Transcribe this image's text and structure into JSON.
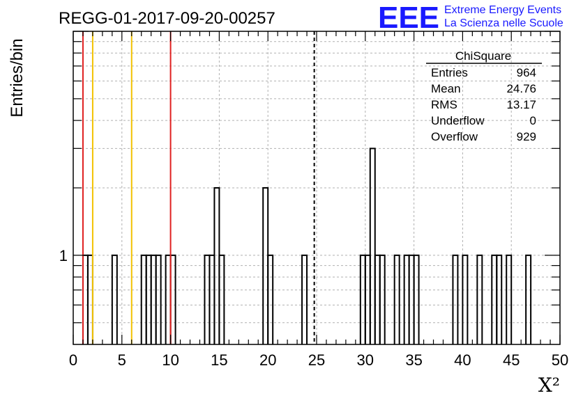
{
  "chart_data": {
    "type": "histogram",
    "title": "REGG-01-2017-09-20-00257",
    "xlabel": "X²",
    "ylabel": "Entries/bin",
    "xlim": [
      0,
      50
    ],
    "y_scale": "log",
    "ylim": [
      0.4,
      10
    ],
    "x_ticks": [
      "0",
      "5",
      "10",
      "15",
      "20",
      "25",
      "30",
      "35",
      "40",
      "45",
      "50"
    ],
    "y_ticks": [
      "1"
    ],
    "grid": true,
    "bin_width": 0.5,
    "bins": [
      {
        "x": 1.0,
        "count": 1
      },
      {
        "x": 1.5,
        "count": 1
      },
      {
        "x": 4.0,
        "count": 1
      },
      {
        "x": 7.0,
        "count": 1
      },
      {
        "x": 7.5,
        "count": 1
      },
      {
        "x": 8.0,
        "count": 1
      },
      {
        "x": 8.5,
        "count": 1
      },
      {
        "x": 9.5,
        "count": 1
      },
      {
        "x": 10.0,
        "count": 1
      },
      {
        "x": 13.5,
        "count": 1
      },
      {
        "x": 14.0,
        "count": 1
      },
      {
        "x": 14.5,
        "count": 2
      },
      {
        "x": 15.0,
        "count": 1
      },
      {
        "x": 19.5,
        "count": 2
      },
      {
        "x": 20.0,
        "count": 1
      },
      {
        "x": 23.5,
        "count": 1
      },
      {
        "x": 29.5,
        "count": 1
      },
      {
        "x": 30.0,
        "count": 1
      },
      {
        "x": 30.5,
        "count": 3
      },
      {
        "x": 31.0,
        "count": 1
      },
      {
        "x": 31.5,
        "count": 1
      },
      {
        "x": 33.0,
        "count": 1
      },
      {
        "x": 34.0,
        "count": 1
      },
      {
        "x": 34.5,
        "count": 1
      },
      {
        "x": 35.0,
        "count": 1
      },
      {
        "x": 39.0,
        "count": 1
      },
      {
        "x": 40.0,
        "count": 1
      },
      {
        "x": 41.5,
        "count": 1
      },
      {
        "x": 43.0,
        "count": 1
      },
      {
        "x": 43.5,
        "count": 1
      },
      {
        "x": 44.5,
        "count": 1
      },
      {
        "x": 46.5,
        "count": 1
      }
    ],
    "reference_lines": [
      {
        "x": 1.0,
        "color": "#e02020",
        "style": "solid"
      },
      {
        "x": 2.0,
        "color": "#f2c200",
        "style": "solid"
      },
      {
        "x": 6.0,
        "color": "#f2c200",
        "style": "solid"
      },
      {
        "x": 10.0,
        "color": "#e02020",
        "style": "solid"
      },
      {
        "x": 24.76,
        "color": "#000000",
        "style": "dashed"
      }
    ],
    "stats_box": {
      "title": "ChiSquare",
      "rows": [
        {
          "label": "Entries",
          "value": "964"
        },
        {
          "label": "Mean",
          "value": "24.76"
        },
        {
          "label": "RMS",
          "value": "13.17"
        },
        {
          "label": "Underflow",
          "value": "0"
        },
        {
          "label": "Overflow",
          "value": "929"
        }
      ],
      "placement": "top-right"
    }
  },
  "logo": {
    "mark": "EEE",
    "line1": "Extreme Energy Events",
    "line2": "La Scienza nelle Scuole",
    "color": "#1a1aff"
  }
}
